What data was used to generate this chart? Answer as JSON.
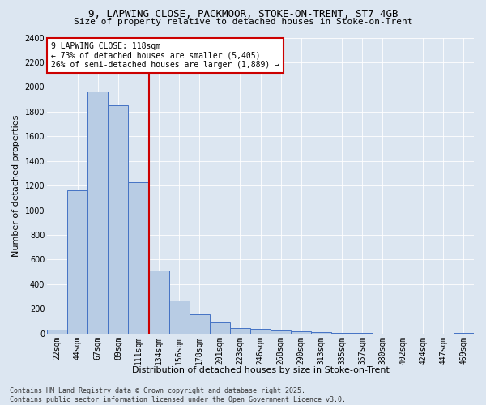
{
  "title_line1": "9, LAPWING CLOSE, PACKMOOR, STOKE-ON-TRENT, ST7 4GB",
  "title_line2": "Size of property relative to detached houses in Stoke-on-Trent",
  "xlabel": "Distribution of detached houses by size in Stoke-on-Trent",
  "ylabel": "Number of detached properties",
  "bar_labels": [
    "22sqm",
    "44sqm",
    "67sqm",
    "89sqm",
    "111sqm",
    "134sqm",
    "156sqm",
    "178sqm",
    "201sqm",
    "223sqm",
    "246sqm",
    "268sqm",
    "290sqm",
    "313sqm",
    "335sqm",
    "357sqm",
    "380sqm",
    "402sqm",
    "424sqm",
    "447sqm",
    "469sqm"
  ],
  "bar_values": [
    28,
    1160,
    1960,
    1850,
    1230,
    510,
    270,
    155,
    88,
    47,
    38,
    22,
    15,
    8,
    3,
    2,
    1,
    1,
    1,
    0,
    5
  ],
  "bar_color": "#b8cce4",
  "bar_edge_color": "#4472c4",
  "plot_bg_color": "#dce6f1",
  "fig_bg_color": "#dce6f1",
  "vline_x_index": 4.5,
  "vline_color": "#cc0000",
  "annotation_text": "9 LAPWING CLOSE: 118sqm\n← 73% of detached houses are smaller (5,405)\n26% of semi-detached houses are larger (1,889) →",
  "annotation_box_color": "#cc0000",
  "annotation_box_fill": "#ffffff",
  "ylim": [
    0,
    2400
  ],
  "yticks": [
    0,
    200,
    400,
    600,
    800,
    1000,
    1200,
    1400,
    1600,
    1800,
    2000,
    2200,
    2400
  ],
  "footer_line1": "Contains HM Land Registry data © Crown copyright and database right 2025.",
  "footer_line2": "Contains public sector information licensed under the Open Government Licence v3.0.",
  "title_fontsize": 9,
  "subtitle_fontsize": 8,
  "axis_label_fontsize": 8,
  "tick_fontsize": 7,
  "annotation_fontsize": 7,
  "footer_fontsize": 6
}
